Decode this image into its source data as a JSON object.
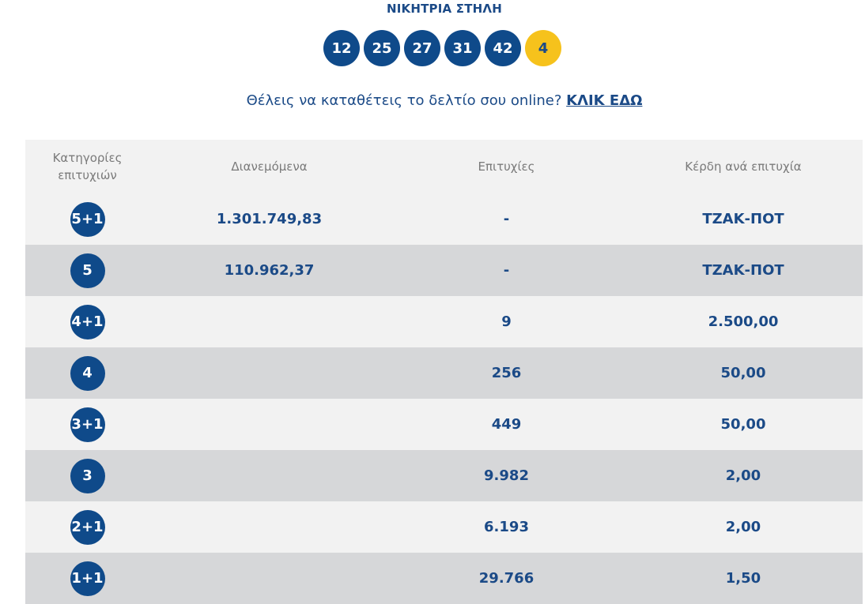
{
  "header": {
    "title": "ΝΙΚΗΤΡΙΑ ΣΤΗΛΗ",
    "winning_numbers": [
      "12",
      "25",
      "27",
      "31",
      "42"
    ],
    "joker": "4"
  },
  "promo": {
    "text": "Θέλεις να καταθέτεις το δελτίο σου online?",
    "link_label": "ΚΛΙΚ ΕΔΩ"
  },
  "table": {
    "headers": {
      "category": "Κατηγορίες επιτυχιών",
      "distributed": "Διανεμόμενα",
      "winners": "Επιτυχίες",
      "prize": "Κέρδη ανά επιτυχία"
    },
    "rows": [
      {
        "category": "5+1",
        "distributed": "1.301.749,83",
        "winners": "-",
        "prize": "ΤΖΑΚ-ΠΟΤ"
      },
      {
        "category": "5",
        "distributed": "110.962,37",
        "winners": "-",
        "prize": "ΤΖΑΚ-ΠΟΤ"
      },
      {
        "category": "4+1",
        "distributed": "",
        "winners": "9",
        "prize": "2.500,00"
      },
      {
        "category": "4",
        "distributed": "",
        "winners": "256",
        "prize": "50,00"
      },
      {
        "category": "3+1",
        "distributed": "",
        "winners": "449",
        "prize": "50,00"
      },
      {
        "category": "3",
        "distributed": "",
        "winners": "9.982",
        "prize": "2,00"
      },
      {
        "category": "2+1",
        "distributed": "",
        "winners": "6.193",
        "prize": "2,00"
      },
      {
        "category": "1+1",
        "distributed": "",
        "winners": "29.766",
        "prize": "1,50"
      }
    ]
  },
  "colors": {
    "primary_blue": "#0f4a8a",
    "joker_yellow": "#f6c21c",
    "row_light": "#f2f2f2",
    "row_dark": "#d6d7d9"
  }
}
